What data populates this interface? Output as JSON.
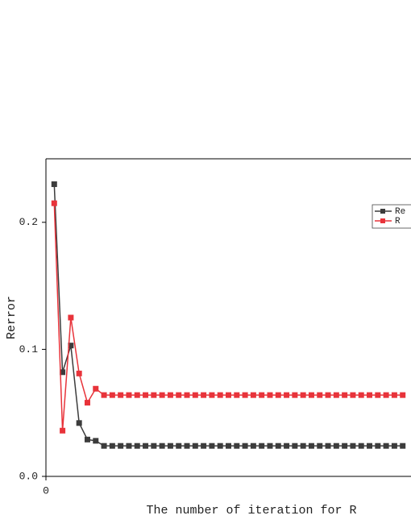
{
  "chart_data": {
    "type": "line",
    "x_label": "The number of iteration for R",
    "y_label": "Rerror",
    "x": [
      1,
      2,
      3,
      4,
      5,
      6,
      7,
      8,
      9,
      10,
      11,
      12,
      13,
      14,
      15,
      16,
      17,
      18,
      19,
      20,
      21,
      22,
      23,
      24,
      25,
      26,
      27,
      28,
      29,
      30,
      31,
      32,
      33,
      34,
      35,
      36,
      37,
      38,
      39,
      40,
      41,
      42,
      43
    ],
    "series": [
      {
        "name": "Re",
        "color": "#3c3c3c",
        "values": [
          0.23,
          0.082,
          0.103,
          0.042,
          0.029,
          0.028,
          0.024,
          0.024,
          0.024,
          0.024,
          0.024,
          0.024,
          0.024,
          0.024,
          0.024,
          0.024,
          0.024,
          0.024,
          0.024,
          0.024,
          0.024,
          0.024,
          0.024,
          0.024,
          0.024,
          0.024,
          0.024,
          0.024,
          0.024,
          0.024,
          0.024,
          0.024,
          0.024,
          0.024,
          0.024,
          0.024,
          0.024,
          0.024,
          0.024,
          0.024,
          0.024,
          0.024,
          0.024
        ]
      },
      {
        "name": "R",
        "color": "#e8333a",
        "values": [
          0.215,
          0.036,
          0.125,
          0.081,
          0.058,
          0.069,
          0.064,
          0.064,
          0.064,
          0.064,
          0.064,
          0.064,
          0.064,
          0.064,
          0.064,
          0.064,
          0.064,
          0.064,
          0.064,
          0.064,
          0.064,
          0.064,
          0.064,
          0.064,
          0.064,
          0.064,
          0.064,
          0.064,
          0.064,
          0.064,
          0.064,
          0.064,
          0.064,
          0.064,
          0.064,
          0.064,
          0.064,
          0.064,
          0.064,
          0.064,
          0.064,
          0.064,
          0.064
        ]
      }
    ],
    "xlim": [
      0,
      44
    ],
    "xticks": [
      0
    ],
    "ylim": [
      0,
      0.25
    ],
    "yticks": [
      {
        "value": 0,
        "label": "0.0"
      },
      0.1,
      0.2
    ],
    "legend": "top-right"
  }
}
